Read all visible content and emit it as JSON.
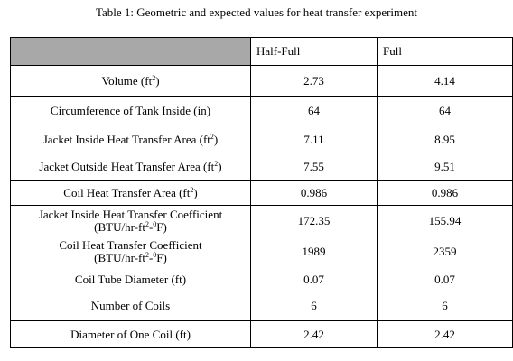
{
  "caption": "Table 1: Geometric and expected values for heat transfer experiment",
  "headers": {
    "col1": "",
    "col2": "Half-Full",
    "col3": "Full"
  },
  "rows": [
    {
      "label": "Volume (ft",
      "sup": "2",
      "label_end": ")",
      "half": "2.73",
      "full": "4.14"
    },
    {
      "label": "Circumference of Tank Inside (in)",
      "half": "64",
      "full": "64"
    },
    {
      "label": "Jacket Inside Heat Transfer Area (ft",
      "sup": "2",
      "label_end": ")",
      "half": "7.11",
      "full": "8.95"
    },
    {
      "label": "Jacket Outside Heat Transfer Area (ft",
      "sup": "2",
      "label_end": ")",
      "half": "7.55",
      "full": "9.51"
    },
    {
      "label": "Coil Heat Transfer Area (ft",
      "sup": "2",
      "label_end": ")",
      "half": "0.986",
      "full": "0.986"
    },
    {
      "label": "Jacket Inside Heat Transfer Coefficient",
      "label2a": "(BTU/hr-ft",
      "sup2a": "2",
      "label2b": "-",
      "sup2b": "0",
      "label2c": "F)",
      "half": "172.35",
      "full": "155.94"
    },
    {
      "label": "Coil Heat Transfer Coefficient",
      "label2a": "(BTU/hr-ft",
      "sup2a": "2",
      "label2b": "-",
      "sup2b": "0",
      "label2c": "F)",
      "half": "1989",
      "full": "2359"
    },
    {
      "label": "Coil Tube Diameter (ft)",
      "half": "0.07",
      "full": "0.07"
    },
    {
      "label": "Number of Coils",
      "half": "6",
      "full": "6"
    },
    {
      "label": "Diameter of One Coil (ft)",
      "half": "2.42",
      "full": "2.42"
    }
  ]
}
